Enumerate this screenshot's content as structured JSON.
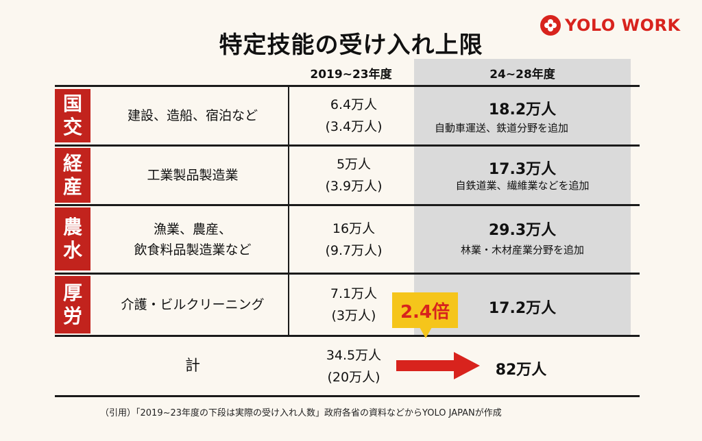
{
  "title": "特定技能の受け入れ上限",
  "logo": {
    "text": "YOLO WORK",
    "icon": "yolo-flower-icon",
    "brand_color": "#d8231d"
  },
  "columns": {
    "left": "2019~23年度",
    "right": "24~28年度"
  },
  "rows": [
    {
      "ministry": [
        "国",
        "交"
      ],
      "category_lines": [
        "建設、造船、宿泊など"
      ],
      "prev_value": "6.4万人",
      "prev_actual": "(3.4万人)",
      "next_value": "18.2万人",
      "note": "自動車運送、鉄道分野を追加"
    },
    {
      "ministry": [
        "経",
        "産"
      ],
      "category_lines": [
        "工業製品製造業"
      ],
      "prev_value": "5万人",
      "prev_actual": "(3.9万人)",
      "next_value": "17.3万人",
      "note": "自鉄道業、繊維業などを追加"
    },
    {
      "ministry": [
        "農",
        "水"
      ],
      "category_lines": [
        "漁業、農産、",
        "飲食料品製造業など"
      ],
      "prev_value": "16万人",
      "prev_actual": "(9.7万人)",
      "next_value": "29.3万人",
      "note": "林業・木材産業分野を追加"
    },
    {
      "ministry": [
        "厚",
        "労"
      ],
      "category_lines": [
        "介護・ビルクリーニング"
      ],
      "prev_value": "7.1万人",
      "prev_actual": "(3万人)",
      "next_value": "17.2万人",
      "note": ""
    }
  ],
  "total": {
    "label": "計",
    "prev_value": "34.5万人",
    "prev_actual": "(20万人)",
    "next_value": "82万人"
  },
  "badge": "2.4倍",
  "footnote": "（引用）「2019~23年度の下段は実際の受け入れ人数」政府各省の資料などからYOLO JAPANが作成",
  "colors": {
    "ministry_bg": "#c2231d",
    "badge_bg": "#f5c51b",
    "arrow": "#d8231d",
    "gray": "#dadada"
  }
}
